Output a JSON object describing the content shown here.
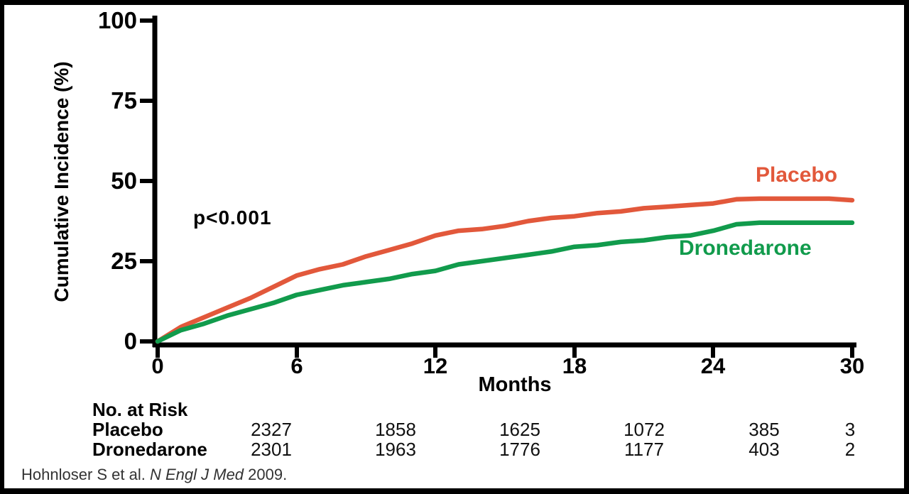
{
  "chart": {
    "ylabel": "Cumulative Incidence (%)",
    "xlabel": "Months",
    "p_value": "p<0.001",
    "y_ticks": [
      "100",
      "75",
      "50",
      "25",
      "0"
    ],
    "x_ticks": [
      "0",
      "6",
      "12",
      "18",
      "24",
      "30"
    ]
  },
  "chart_data": {
    "type": "line",
    "title": "",
    "xlabel": "Months",
    "ylabel": "Cumulative Incidence (%)",
    "xlim": [
      0,
      30
    ],
    "ylim": [
      0,
      100
    ],
    "x_tick_values": [
      0,
      6,
      12,
      18,
      24,
      30
    ],
    "y_tick_values": [
      0,
      25,
      50,
      75,
      100
    ],
    "grid": false,
    "legend_position": "inline-labels-right",
    "annotation": "p<0.001",
    "x": [
      0,
      1,
      2,
      3,
      4,
      5,
      6,
      7,
      8,
      9,
      10,
      11,
      12,
      13,
      14,
      15,
      16,
      17,
      18,
      19,
      20,
      21,
      22,
      23,
      24,
      25,
      26,
      27,
      28,
      29,
      30
    ],
    "series": [
      {
        "name": "Placebo",
        "color": "#E2583B",
        "values": [
          0,
          4.5,
          7.5,
          10.5,
          13.5,
          17,
          20.5,
          22.5,
          24,
          26.5,
          28.5,
          30.5,
          33,
          34.5,
          35,
          36,
          37.5,
          38.5,
          39,
          40,
          40.5,
          41.5,
          42,
          42.5,
          43,
          44.3,
          44.5,
          44.5,
          44.5,
          44.5,
          44
        ]
      },
      {
        "name": "Dronedarone",
        "color": "#119B4C",
        "values": [
          0,
          3.5,
          5.5,
          8,
          10,
          12,
          14.5,
          16,
          17.5,
          18.5,
          19.5,
          21,
          22,
          24,
          25,
          26,
          27,
          28,
          29.5,
          30,
          31,
          31.5,
          32.5,
          33,
          34.5,
          36.5,
          37,
          37,
          37,
          37,
          37
        ]
      }
    ]
  },
  "risk_table": {
    "header": "No. at Risk",
    "rows": [
      {
        "label": "Placebo",
        "values": [
          "2327",
          "1858",
          "1625",
          "1072",
          "385",
          "3"
        ]
      },
      {
        "label": "Dronedarone",
        "values": [
          "2301",
          "1963",
          "1776",
          "1177",
          "403",
          "2"
        ]
      }
    ]
  },
  "citation": {
    "prefix": "Hohnloser S et al. ",
    "journal": "N Engl J Med",
    "suffix": " 2009."
  },
  "colors": {
    "placebo": "#E2583B",
    "dronedarone": "#119B4C",
    "axis": "#000000",
    "border": "#000000",
    "citation_text": "#333333"
  }
}
